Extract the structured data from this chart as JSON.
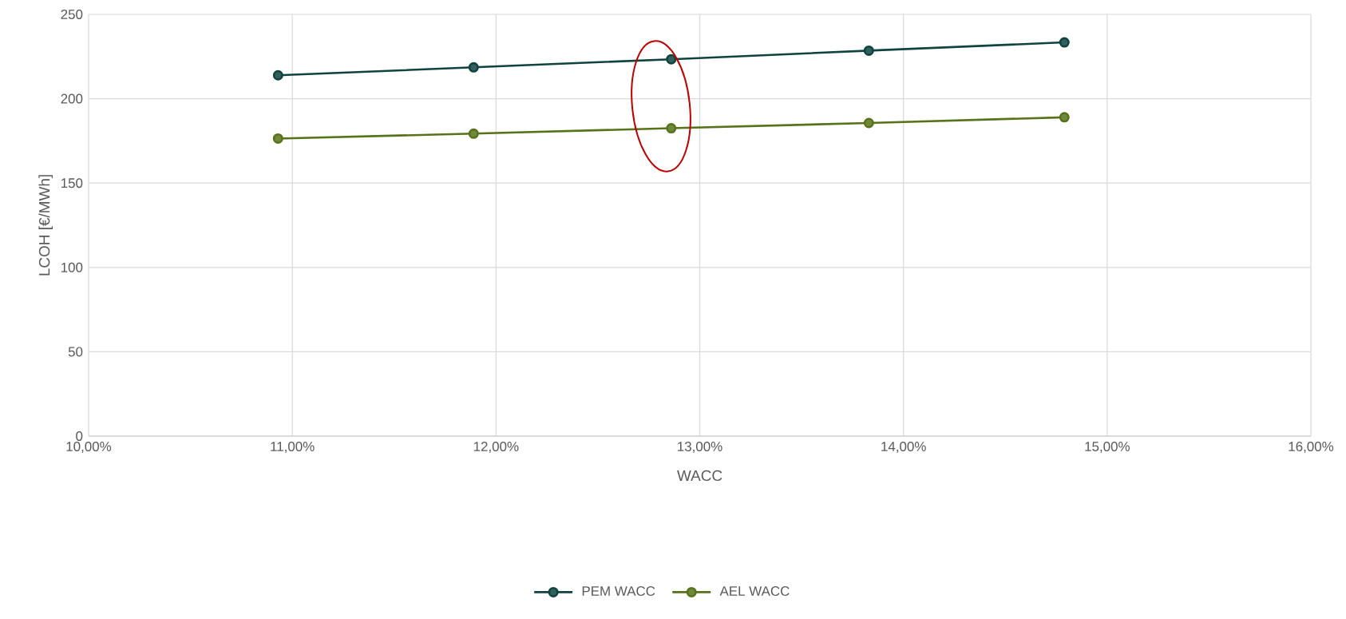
{
  "chart_data": {
    "type": "line",
    "xlabel": "WACC",
    "ylabel": "LCOH [€/MWh]",
    "x": [
      10.93,
      11.89,
      12.86,
      13.83,
      14.79
    ],
    "series": [
      {
        "name": "PEM WACC",
        "color": "#0e433f",
        "values": [
          213.9,
          218.6,
          223.4,
          228.5,
          233.4
        ]
      },
      {
        "name": "AEL WACC",
        "color": "#56731a",
        "values": [
          176.4,
          179.3,
          182.5,
          185.6,
          189.0
        ]
      }
    ],
    "xlim": [
      10,
      16
    ],
    "xticks": [
      {
        "value": 10,
        "label": "10,00%"
      },
      {
        "value": 11,
        "label": "11,00%"
      },
      {
        "value": 12,
        "label": "12,00%"
      },
      {
        "value": 13,
        "label": "13,00%"
      },
      {
        "value": 14,
        "label": "14,00%"
      },
      {
        "value": 15,
        "label": "15,00%"
      },
      {
        "value": 16,
        "label": "16,00%"
      }
    ],
    "ylim": [
      0,
      250
    ],
    "yticks": [
      0,
      50,
      100,
      150,
      200,
      250
    ],
    "grid": true,
    "legend": "bottom",
    "marker": "circle",
    "line_style": "solid"
  }
}
